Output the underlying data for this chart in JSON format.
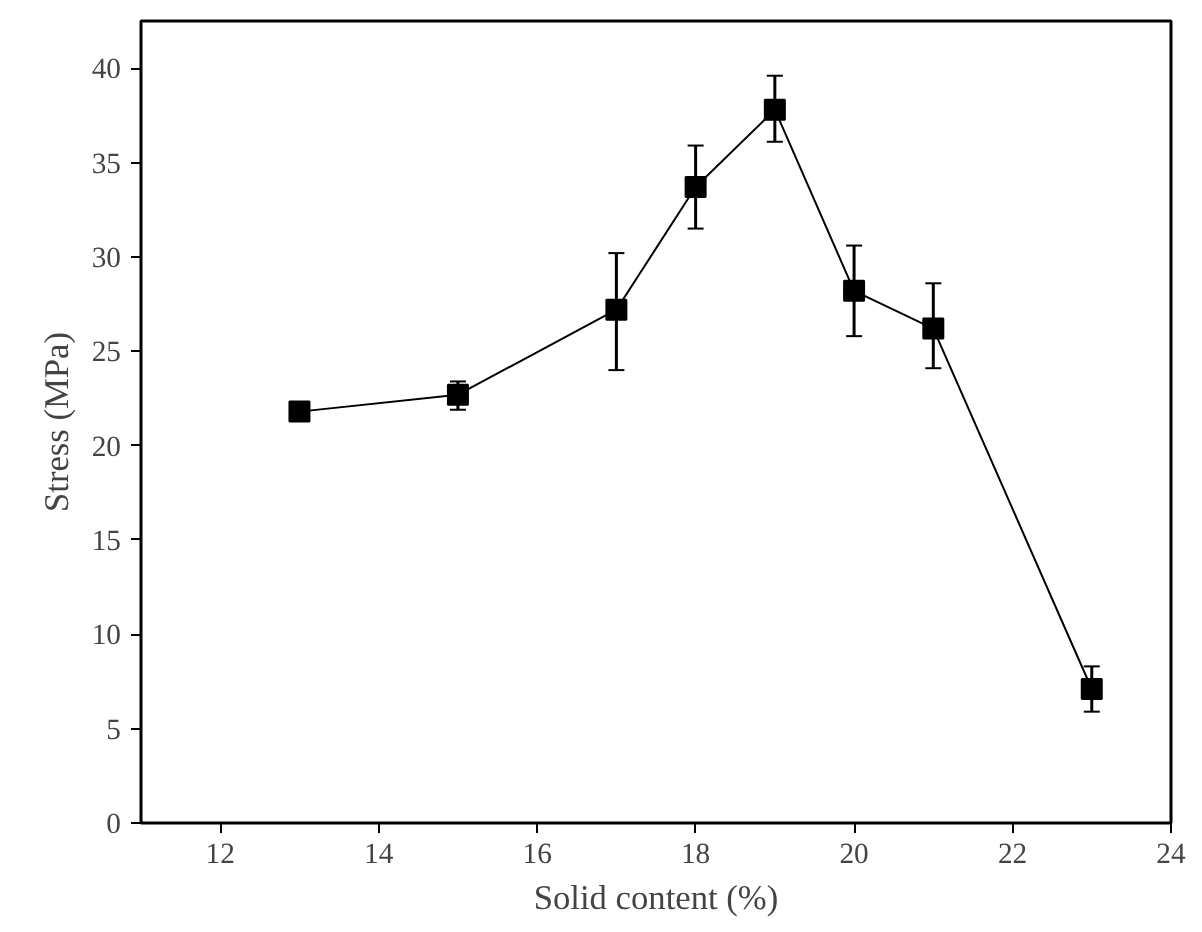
{
  "chart_data": {
    "type": "line",
    "xlabel": "Solid content (%)",
    "ylabel": "Stress (MPa)",
    "x": [
      13,
      15,
      17,
      18,
      19,
      20,
      21,
      23
    ],
    "series": [
      {
        "color": "#000000",
        "values": [
          21.8,
          22.7,
          27.2,
          33.7,
          37.8,
          28.2,
          26.2,
          7.1
        ],
        "errors": [
          [
            21.5,
            22.1
          ],
          [
            21.9,
            23.4
          ],
          [
            24.0,
            30.2
          ],
          [
            31.5,
            35.9
          ],
          [
            36.1,
            39.6
          ],
          [
            25.8,
            30.6
          ],
          [
            24.1,
            28.6
          ],
          [
            5.9,
            8.3
          ]
        ]
      }
    ],
    "xlim": [
      11,
      24
    ],
    "ylim": [
      0,
      42.5
    ],
    "xticks": [
      12,
      14,
      16,
      18,
      20,
      22,
      24
    ],
    "yticks": [
      0,
      5,
      10,
      15,
      20,
      25,
      30,
      35,
      40
    ],
    "marker": "square",
    "line_style": "solid",
    "grid": false
  }
}
